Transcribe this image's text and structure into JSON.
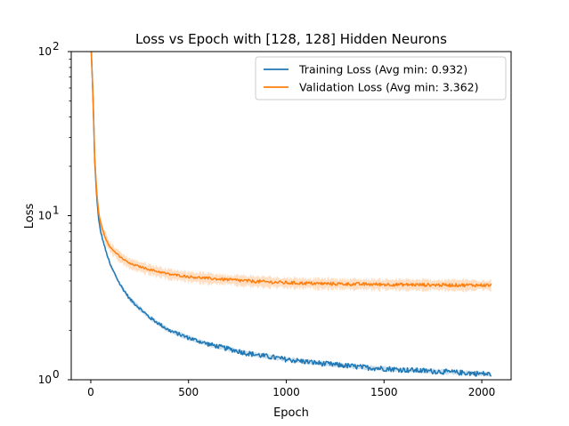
{
  "chart_data": {
    "type": "line",
    "title": "Loss vs Epoch with [128, 128] Hidden Neurons",
    "xlabel": "Epoch",
    "ylabel": "Loss",
    "xlim": [
      -100,
      2150
    ],
    "ylim": [
      1,
      100
    ],
    "yscale": "log",
    "x_ticks": [
      0,
      500,
      1000,
      1500,
      2000
    ],
    "x_tick_labels": [
      "0",
      "500",
      "1000",
      "1500",
      "2000"
    ],
    "y_ticks": [
      1,
      10,
      100
    ],
    "y_tick_base": "10",
    "y_tick_exponents": [
      "0",
      "1",
      "2"
    ],
    "grid": false,
    "legend_placement": "top-right",
    "x": [
      0,
      10,
      20,
      30,
      40,
      50,
      75,
      100,
      150,
      200,
      300,
      400,
      500,
      600,
      800,
      1000,
      1200,
      1400,
      1600,
      1800,
      2050
    ],
    "series": [
      {
        "name": "Training Loss (Avg min: 0.932)",
        "color": "#1f77b4",
        "values": [
          120,
          60,
          22,
          13,
          9.5,
          8.0,
          6.2,
          5.0,
          3.8,
          3.1,
          2.4,
          2.0,
          1.8,
          1.65,
          1.45,
          1.33,
          1.25,
          1.19,
          1.15,
          1.12,
          1.08
        ],
        "band_halfwidth_frac": 0.05
      },
      {
        "name": "Validation Loss (Avg min: 3.362)",
        "color": "#ff7f0e",
        "values": [
          120,
          60,
          23,
          14,
          10.5,
          9.0,
          7.3,
          6.4,
          5.6,
          5.1,
          4.7,
          4.4,
          4.25,
          4.15,
          4.0,
          3.9,
          3.85,
          3.82,
          3.8,
          3.78,
          3.77
        ],
        "band_halfwidth_frac": 0.12
      }
    ]
  }
}
